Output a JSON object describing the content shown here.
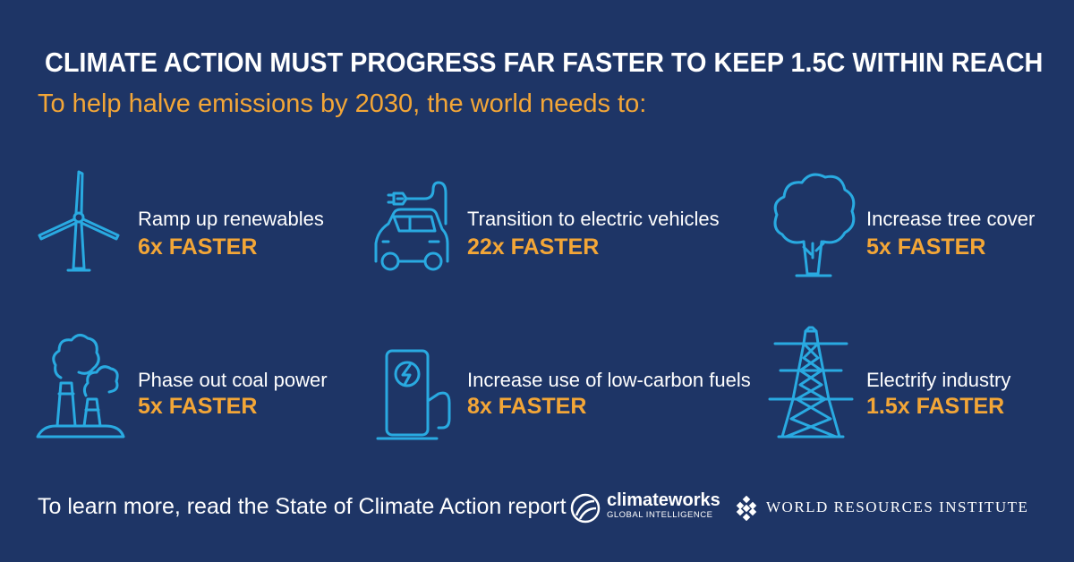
{
  "header": {
    "title": "CLIMATE ACTION MUST PROGRESS FAR FASTER TO KEEP 1.5C WITHIN REACH",
    "subtitle": "To help halve emissions by 2030, the world needs to:"
  },
  "actions": [
    {
      "label": "Ramp up renewables",
      "multiplier": "6x FASTER",
      "icon": "wind-turbine-icon"
    },
    {
      "label": "Transition to electric vehicles",
      "multiplier": "22x FASTER",
      "icon": "electric-car-icon"
    },
    {
      "label": "Increase tree cover",
      "multiplier": "5x FASTER",
      "icon": "tree-icon"
    },
    {
      "label": "Phase out coal power",
      "multiplier": "5x FASTER",
      "icon": "coal-plant-icon"
    },
    {
      "label": "Increase use of low-carbon fuels",
      "multiplier": "8x FASTER",
      "icon": "charging-station-icon"
    },
    {
      "label": "Electrify industry",
      "multiplier": "1.5x FASTER",
      "icon": "power-pylon-icon"
    }
  ],
  "footer": {
    "text": "To learn more, read the State of Climate Action report",
    "logo1_name": "climateworks",
    "logo1_sub": "GLOBAL INTELLIGENCE",
    "logo2_name": "WORLD RESOURCES INSTITUTE"
  },
  "colors": {
    "background": "#1e3566",
    "accent": "#f3a637",
    "icon": "#29aae1",
    "text": "#ffffff"
  }
}
